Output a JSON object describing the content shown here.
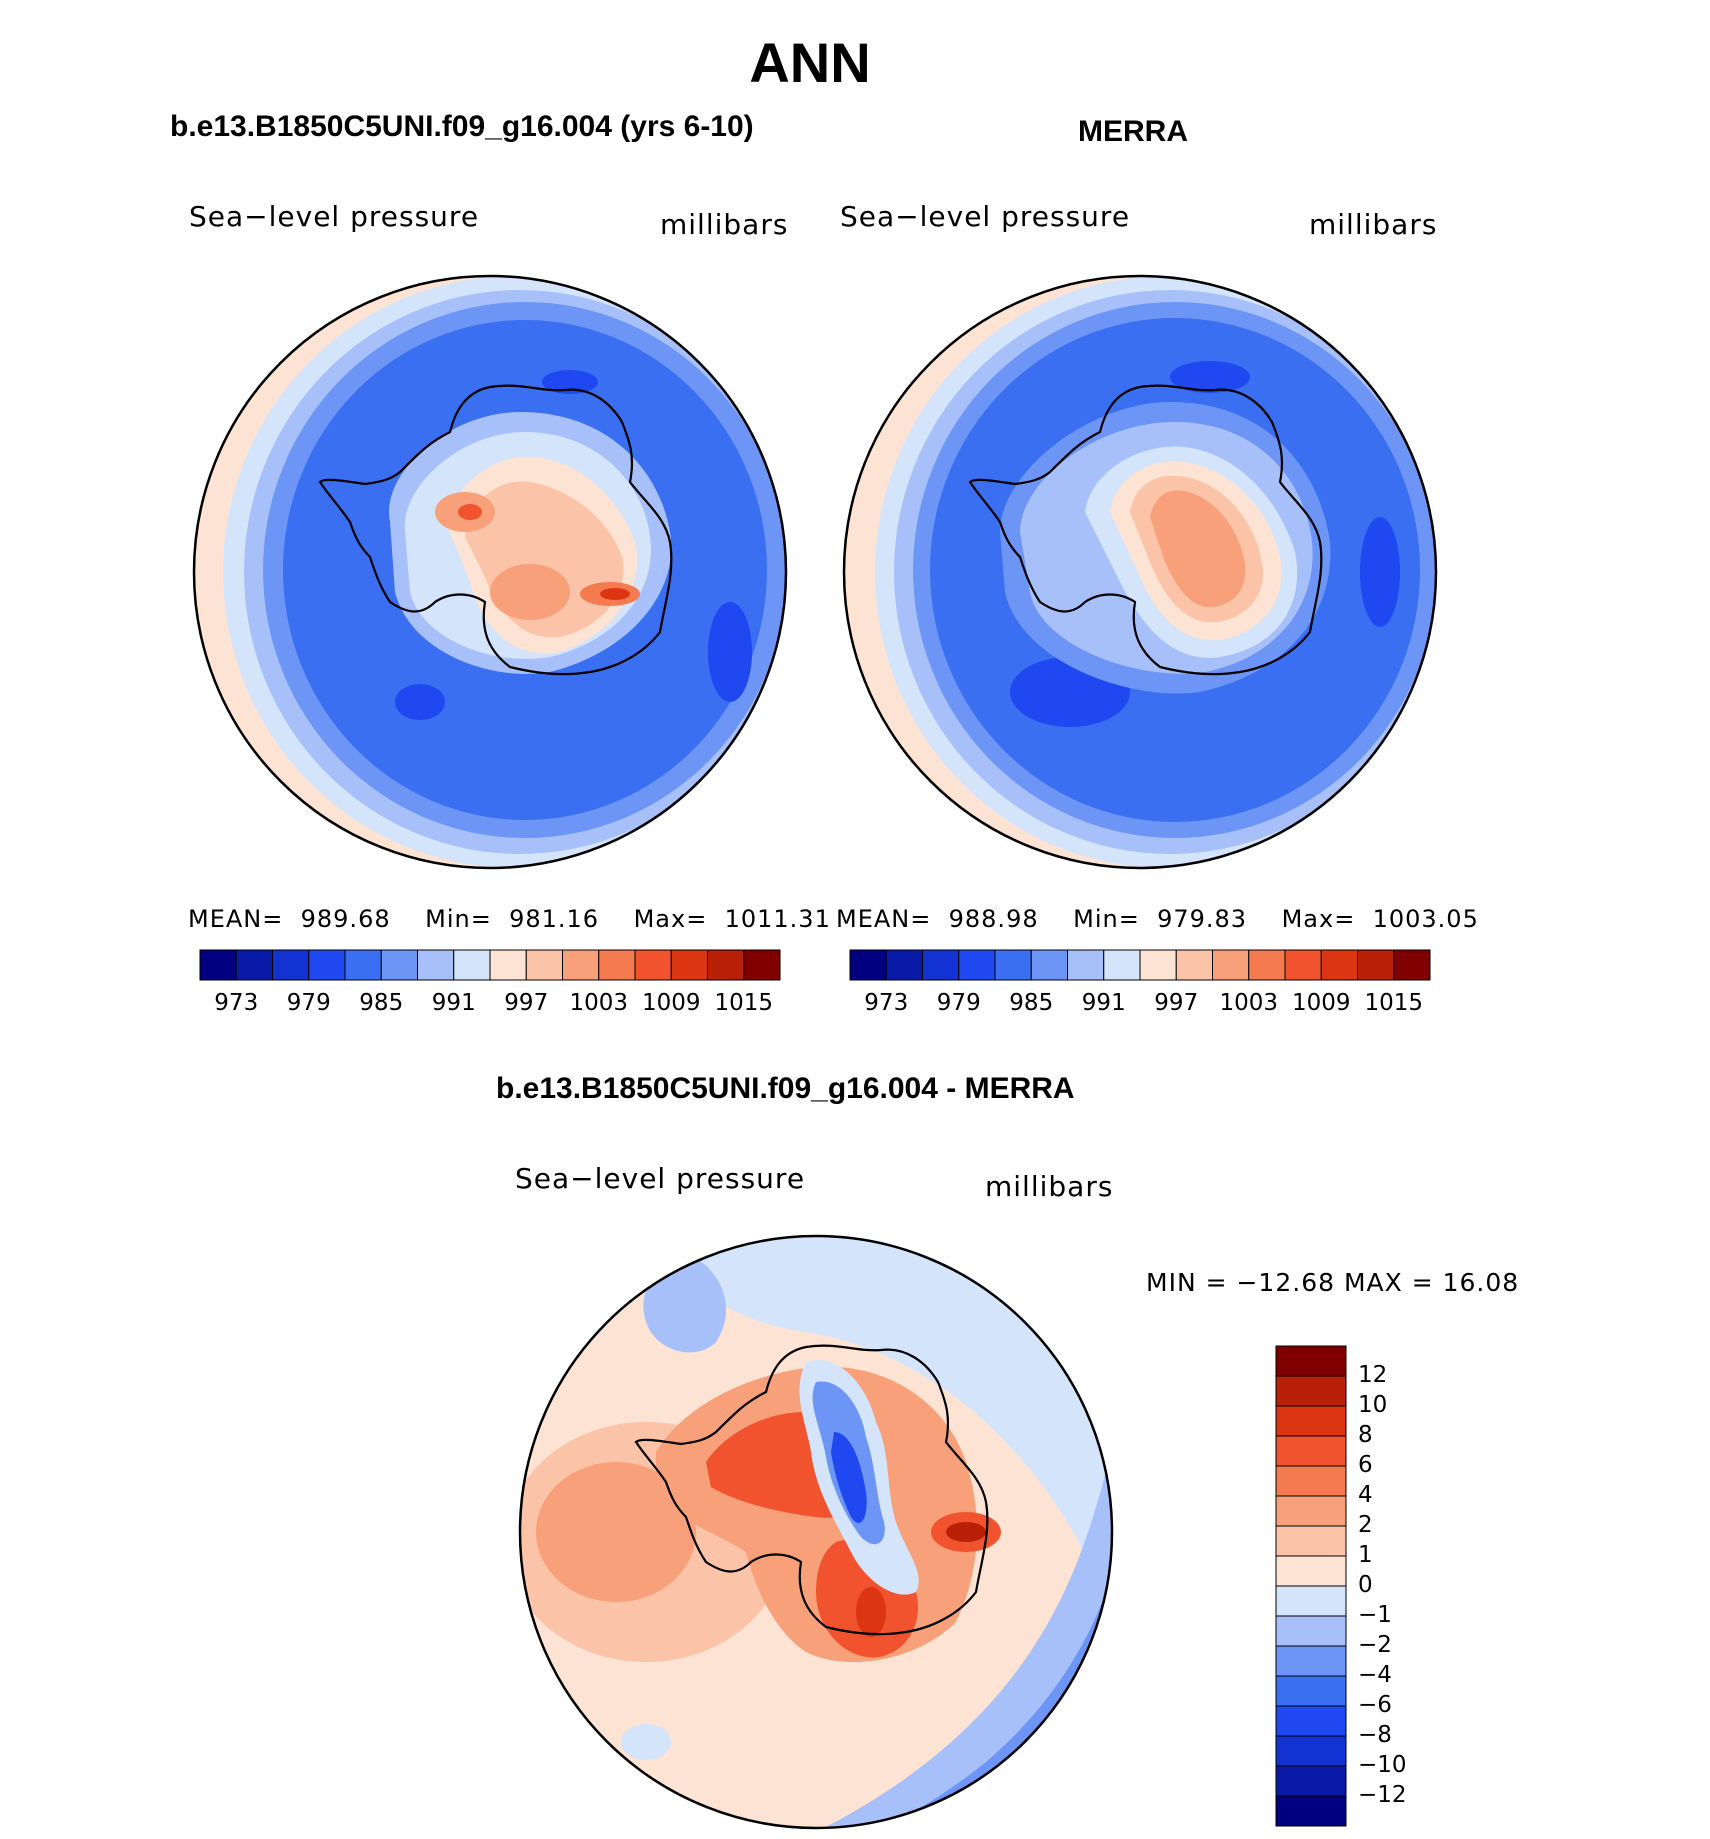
{
  "main_title": "ANN",
  "panels": [
    {
      "title": "b.e13.B1850C5UNI.f09_g16.004 (yrs 6-10)",
      "variable": "Sea−level pressure",
      "units": "millibars",
      "stats": {
        "mean_label": "MEAN=",
        "mean": "989.68",
        "min_label": "Min=",
        "min": "981.16",
        "max_label": "Max=",
        "max": "1011.31"
      }
    },
    {
      "title": "MERRA",
      "variable": "Sea−level pressure",
      "units": "millibars",
      "stats": {
        "mean_label": "MEAN=",
        "mean": "988.98",
        "min_label": "Min=",
        "min": "979.83",
        "max_label": "Max=",
        "max": "1003.05"
      }
    },
    {
      "title": "b.e13.B1850C5UNI.f09_g16.004 - MERRA",
      "variable": "Sea−level pressure",
      "units": "millibars",
      "stats_text": "MIN = −12.68  MAX =   16.08"
    }
  ],
  "chart_data": [
    {
      "type": "heatmap",
      "projection": "south-polar-stereographic",
      "title": "b.e13.B1850C5UNI.f09_g16.004 (yrs 6-10)",
      "variable": "Sea-level pressure",
      "units": "millibars",
      "mean": 989.68,
      "min": 981.16,
      "max": 1011.31,
      "levels": [
        973,
        976,
        979,
        982,
        985,
        988,
        991,
        994,
        997,
        1000,
        1003,
        1006,
        1009,
        1012,
        1015
      ],
      "colorbar_tick_labels": [
        "973",
        "979",
        "985",
        "991",
        "997",
        "1003",
        "1009",
        "1015"
      ],
      "colorbar_orientation": "horizontal"
    },
    {
      "type": "heatmap",
      "projection": "south-polar-stereographic",
      "title": "MERRA",
      "variable": "Sea-level pressure",
      "units": "millibars",
      "mean": 988.98,
      "min": 979.83,
      "max": 1003.05,
      "levels": [
        973,
        976,
        979,
        982,
        985,
        988,
        991,
        994,
        997,
        1000,
        1003,
        1006,
        1009,
        1012,
        1015
      ],
      "colorbar_tick_labels": [
        "973",
        "979",
        "985",
        "991",
        "997",
        "1003",
        "1009",
        "1015"
      ],
      "colorbar_orientation": "horizontal"
    },
    {
      "type": "heatmap",
      "projection": "south-polar-stereographic",
      "title": "b.e13.B1850C5UNI.f09_g16.004 - MERRA",
      "variable": "Sea-level pressure",
      "units": "millibars",
      "min": -12.68,
      "max": 16.08,
      "levels": [
        -12,
        -10,
        -8,
        -6,
        -4,
        -2,
        -1,
        0,
        1,
        2,
        4,
        6,
        8,
        10,
        12
      ],
      "colorbar_tick_labels": [
        "12",
        "10",
        "8",
        "6",
        "4",
        "2",
        "1",
        "0",
        "−1",
        "−2",
        "−4",
        "−6",
        "−8",
        "−10",
        "−12"
      ],
      "colorbar_orientation": "vertical"
    }
  ],
  "colors": {
    "palette": [
      "#000080",
      "#0a1aa8",
      "#1232d2",
      "#1f48f0",
      "#3b6ff2",
      "#6c95f5",
      "#a7c0f9",
      "#d3e4fb",
      "#fde3d3",
      "#fbc3a8",
      "#f7a07a",
      "#f47a4f",
      "#f0532d",
      "#dc3512",
      "#b82008",
      "#800000"
    ],
    "coast": "#000000",
    "frame": "#000000"
  }
}
